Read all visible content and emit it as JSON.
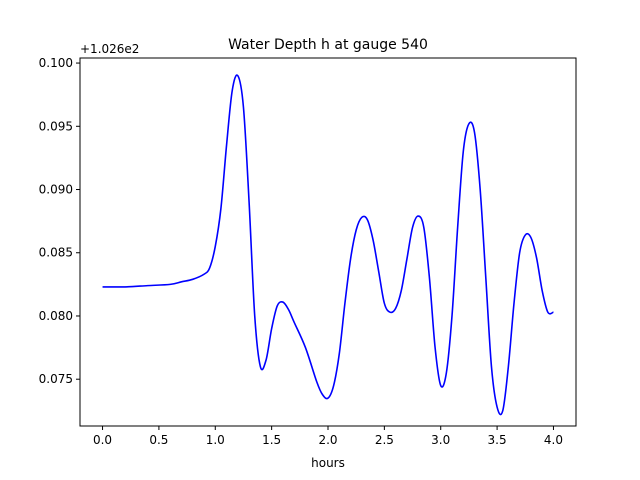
{
  "chart_data": {
    "type": "line",
    "title": "Water Depth h at gauge 540",
    "xlabel": "hours",
    "ylabel": "",
    "offset_label": "+1.026e2",
    "y_offset": 102.6,
    "xlim": [
      -0.2,
      4.2
    ],
    "ylim": [
      0.0713,
      0.1004
    ],
    "xticks": [
      0.0,
      0.5,
      1.0,
      1.5,
      2.0,
      2.5,
      3.0,
      3.5,
      4.0
    ],
    "xtick_labels": [
      "0.0",
      "0.5",
      "1.0",
      "1.5",
      "2.0",
      "2.5",
      "3.0",
      "3.5",
      "4.0"
    ],
    "yticks": [
      0.075,
      0.08,
      0.085,
      0.09,
      0.095,
      0.1
    ],
    "ytick_labels": [
      "0.075",
      "0.080",
      "0.085",
      "0.090",
      "0.095",
      "0.100"
    ],
    "grid": false,
    "series": [
      {
        "color": "#0000ff",
        "x": [
          0.0,
          0.2,
          0.4,
          0.6,
          0.7,
          0.8,
          0.9,
          0.95,
          1.0,
          1.05,
          1.1,
          1.15,
          1.2,
          1.25,
          1.3,
          1.35,
          1.4,
          1.45,
          1.5,
          1.55,
          1.6,
          1.65,
          1.7,
          1.8,
          1.9,
          1.95,
          2.0,
          2.05,
          2.1,
          2.15,
          2.2,
          2.25,
          2.3,
          2.35,
          2.4,
          2.45,
          2.5,
          2.55,
          2.6,
          2.65,
          2.7,
          2.75,
          2.8,
          2.85,
          2.9,
          2.95,
          3.0,
          3.05,
          3.1,
          3.15,
          3.2,
          3.25,
          3.3,
          3.35,
          3.4,
          3.45,
          3.5,
          3.55,
          3.6,
          3.65,
          3.7,
          3.75,
          3.8,
          3.85,
          3.9,
          3.95,
          4.0
        ],
        "y": [
          0.0823,
          0.0823,
          0.0824,
          0.0825,
          0.0827,
          0.0829,
          0.0833,
          0.0838,
          0.0855,
          0.0885,
          0.0935,
          0.0978,
          0.099,
          0.0965,
          0.089,
          0.08,
          0.076,
          0.0765,
          0.079,
          0.0808,
          0.0811,
          0.0805,
          0.0795,
          0.0775,
          0.0748,
          0.0738,
          0.0735,
          0.0745,
          0.077,
          0.081,
          0.0845,
          0.0868,
          0.0878,
          0.0876,
          0.086,
          0.0835,
          0.081,
          0.0803,
          0.0806,
          0.082,
          0.0845,
          0.087,
          0.0879,
          0.087,
          0.083,
          0.0775,
          0.0745,
          0.0755,
          0.08,
          0.087,
          0.093,
          0.0952,
          0.0945,
          0.09,
          0.083,
          0.076,
          0.0728,
          0.0725,
          0.076,
          0.081,
          0.085,
          0.0864,
          0.0862,
          0.0846,
          0.082,
          0.0803,
          0.0803
        ]
      }
    ]
  }
}
